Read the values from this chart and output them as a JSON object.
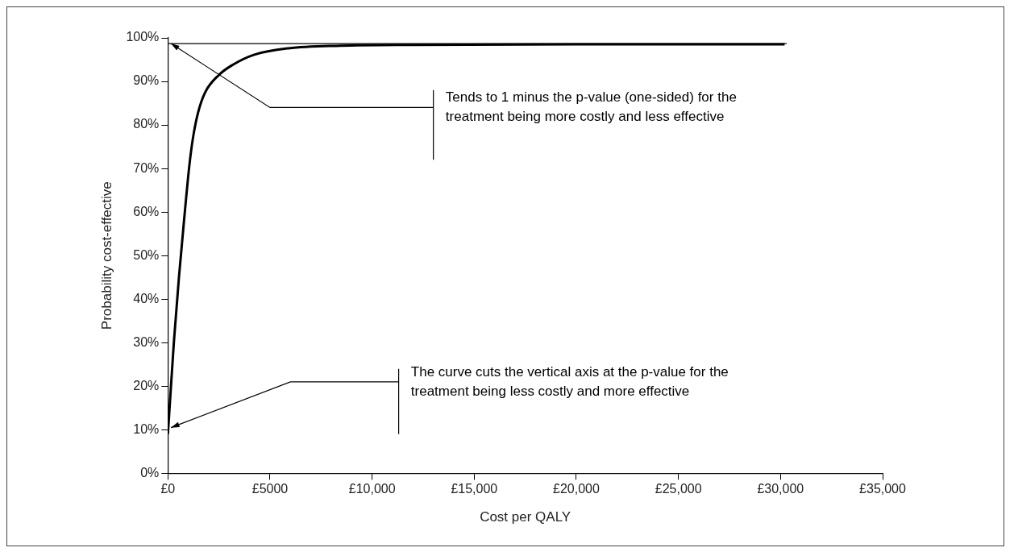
{
  "chart_data": {
    "type": "line",
    "xlabel": "Cost per QALY",
    "ylabel": "Probability cost-effective",
    "x": [
      0,
      290,
      540,
      800,
      1050,
      1220,
      1475,
      1815,
      2500,
      3170,
      4200,
      5900,
      8450,
      12000,
      20000,
      30200
    ],
    "series": [
      {
        "color": "#000000",
        "values": [
          9,
          30,
          45,
          58.6,
          70.7,
          76.8,
          82.8,
          87.4,
          91.5,
          93.8,
          96.1,
          97.6,
          98.2,
          98.4,
          98.5,
          98.5
        ]
      }
    ],
    "xlim": [
      0,
      35000
    ],
    "xticks": [
      {
        "value": 0,
        "label": "£0"
      },
      {
        "value": 5000,
        "label": "£5000"
      },
      {
        "value": 10000,
        "label": "£10,000"
      },
      {
        "value": 15000,
        "label": "£15,000"
      },
      {
        "value": 20000,
        "label": "£20,000"
      },
      {
        "value": 25000,
        "label": "£25,000"
      },
      {
        "value": 30000,
        "label": "£30,000"
      },
      {
        "value": 35000,
        "label": "£35,000"
      }
    ],
    "ylim": [
      0,
      100
    ],
    "yticks": [
      {
        "value": 0,
        "label": "0%"
      },
      {
        "value": 10,
        "label": "10%"
      },
      {
        "value": 20,
        "label": "20%"
      },
      {
        "value": 30,
        "label": "30%"
      },
      {
        "value": 40,
        "label": "40%"
      },
      {
        "value": 50,
        "label": "50%"
      },
      {
        "value": 60,
        "label": "60%"
      },
      {
        "value": 70,
        "label": "70%"
      },
      {
        "value": 80,
        "label": "80%"
      },
      {
        "value": 90,
        "label": "90%"
      },
      {
        "value": 100,
        "label": "100%"
      }
    ],
    "ref_lines": [
      {
        "axis": "y",
        "value": 98.7,
        "color": "#000000"
      }
    ],
    "annotations": [
      {
        "text": "Tends to 1 minus the p-value (one-sided) for the treatment being more costly and less effective",
        "x": 150,
        "y": 98.7
      },
      {
        "text": "The curve cuts the vertical axis at the p-value for the treatment being less costly and more effective",
        "x": 150,
        "y": 10.5
      }
    ],
    "grid": false,
    "legend": false,
    "marker": "none",
    "line_style": "solid"
  }
}
